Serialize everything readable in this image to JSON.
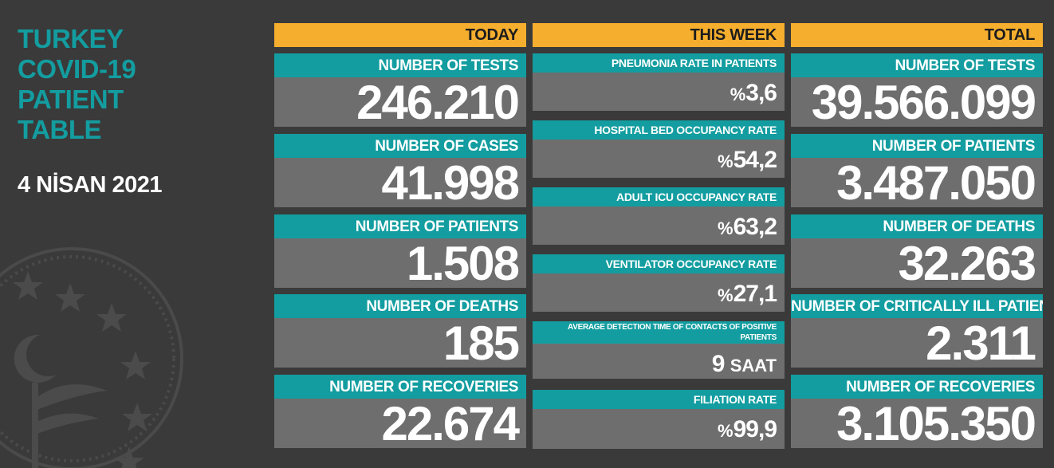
{
  "title_lines": [
    "TURKEY",
    "COVID-19",
    "PATIENT",
    "TABLE"
  ],
  "date": "4 NİSAN 2021",
  "columns": {
    "today": {
      "header": "TODAY",
      "items": [
        {
          "label": "NUMBER OF TESTS",
          "value": "246.210"
        },
        {
          "label": "NUMBER OF CASES",
          "value": "41.998"
        },
        {
          "label": "NUMBER OF PATIENTS",
          "value": "1.508"
        },
        {
          "label": "NUMBER OF DEATHS",
          "value": "185"
        },
        {
          "label": "NUMBER OF RECOVERIES",
          "value": "22.674"
        }
      ]
    },
    "week": {
      "header": "THIS WEEK",
      "items": [
        {
          "label": "PNEUMONIA RATE IN PATIENTS",
          "prefix": "%",
          "value": "3,6"
        },
        {
          "label": "HOSPITAL BED OCCUPANCY RATE",
          "prefix": "%",
          "value": "54,2"
        },
        {
          "label": "ADULT ICU OCCUPANCY RATE",
          "prefix": "%",
          "value": "63,2"
        },
        {
          "label": "VENTILATOR OCCUPANCY RATE",
          "prefix": "%",
          "value": "27,1"
        },
        {
          "label": "AVERAGE DETECTION TIME OF CONTACTS OF POSITIVE PATIENTS",
          "value": "9",
          "suffix": "SAAT"
        },
        {
          "label": "FILIATION RATE",
          "prefix": "%",
          "value": "99,9"
        }
      ]
    },
    "total": {
      "header": "TOTAL",
      "items": [
        {
          "label": "NUMBER OF TESTS",
          "value": "39.566.099"
        },
        {
          "label": "NUMBER OF PATIENTS",
          "value": "3.487.050"
        },
        {
          "label": "NUMBER OF DEATHS",
          "value": "32.263"
        },
        {
          "label": "NUMBER OF CRITICALLY ILL PATIENTS",
          "value": "2.311"
        },
        {
          "label": "NUMBER OF RECOVERIES",
          "value": "3.105.350"
        }
      ]
    }
  },
  "colors": {
    "background": "#3a3a3a",
    "header": "#f5ae2e",
    "label": "#139da0",
    "value_box": "#6e6e6e",
    "title": "#139da0"
  },
  "icons": [
    "ministry-emblem-icon"
  ]
}
